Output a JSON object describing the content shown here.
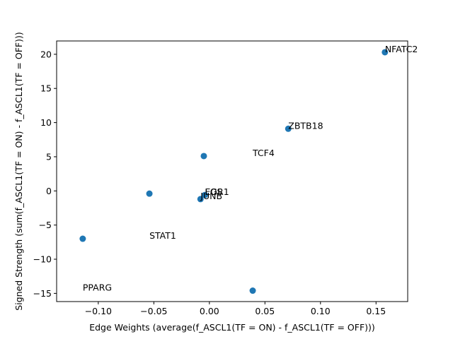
{
  "chart_data": {
    "type": "scatter",
    "xlabel": "Edge Weights (average(f_ASCL1(TF = ON) - f_ASCL1(TF = OFF)))",
    "ylabel": "Signed Strength (sum(f_ASCL1(TF = ON) - f_ASCL1(TF = OFF)))",
    "xlim": [
      -0.1375,
      0.1785
    ],
    "ylim": [
      -16.2,
      21.95
    ],
    "xticks": [
      -0.1,
      -0.05,
      0.0,
      0.05,
      0.1,
      0.15
    ],
    "xtick_labels": [
      "−0.10",
      "−0.05",
      "0.00",
      "0.05",
      "0.10",
      "0.15"
    ],
    "yticks": [
      -15,
      -10,
      -5,
      0,
      5,
      10,
      15,
      20
    ],
    "ytick_labels": [
      "−15",
      "−10",
      "−5",
      "0",
      "5",
      "10",
      "15",
      "20"
    ],
    "grid": false,
    "marker_color": "#1f77b4",
    "points": [
      {
        "x": 0.158,
        "y": 20.3
      },
      {
        "x": 0.071,
        "y": 9.1
      },
      {
        "x": -0.005,
        "y": 5.1
      },
      {
        "x": -0.054,
        "y": -0.4
      },
      {
        "x": -0.004,
        "y": -0.6
      },
      {
        "x": -0.008,
        "y": -1.2
      },
      {
        "x": -0.114,
        "y": -7.0
      },
      {
        "x": 0.039,
        "y": -14.6
      }
    ],
    "annotations": [
      {
        "text": "NFATC2",
        "x": 0.158,
        "y": 20.3
      },
      {
        "text": "ZBTB18",
        "x": 0.071,
        "y": 9.1
      },
      {
        "text": "TCF4",
        "x": 0.039,
        "y": 5.1
      },
      {
        "text": "FOS",
        "x": -0.004,
        "y": -0.6
      },
      {
        "text": "EGR1",
        "x": -0.004,
        "y": -0.6
      },
      {
        "text": "JUNB",
        "x": -0.008,
        "y": -1.2
      },
      {
        "text": "STAT1",
        "x": -0.054,
        "y": -7.0
      },
      {
        "text": "PPARG",
        "x": -0.114,
        "y": -14.6
      }
    ]
  }
}
